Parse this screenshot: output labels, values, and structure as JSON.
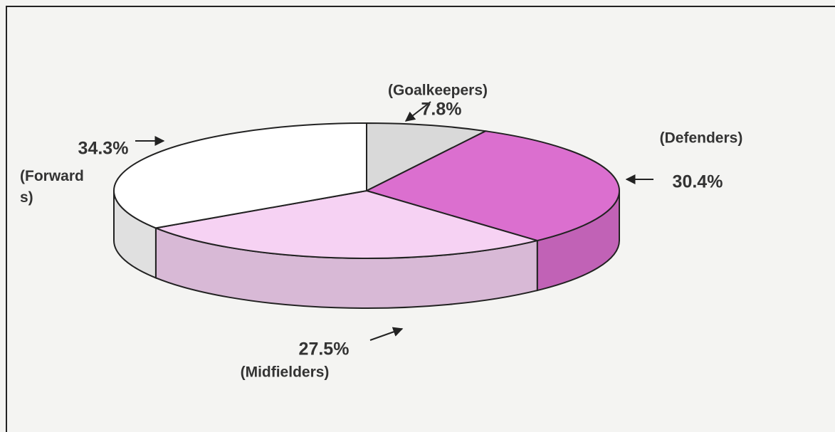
{
  "chart_data": {
    "type": "pie",
    "categories": [
      "(Goalkeepers)",
      "(Defenders)",
      "(Midfielders)",
      "(Forwards)"
    ],
    "values": [
      7.8,
      30.4,
      27.5,
      34.3
    ],
    "value_labels": [
      "7.8%",
      "30.4%",
      "27.5%",
      "34.3%"
    ],
    "colors": [
      "#d9d9d9",
      "#db6fcf",
      "#f6d2f3",
      "#ffffff"
    ]
  }
}
